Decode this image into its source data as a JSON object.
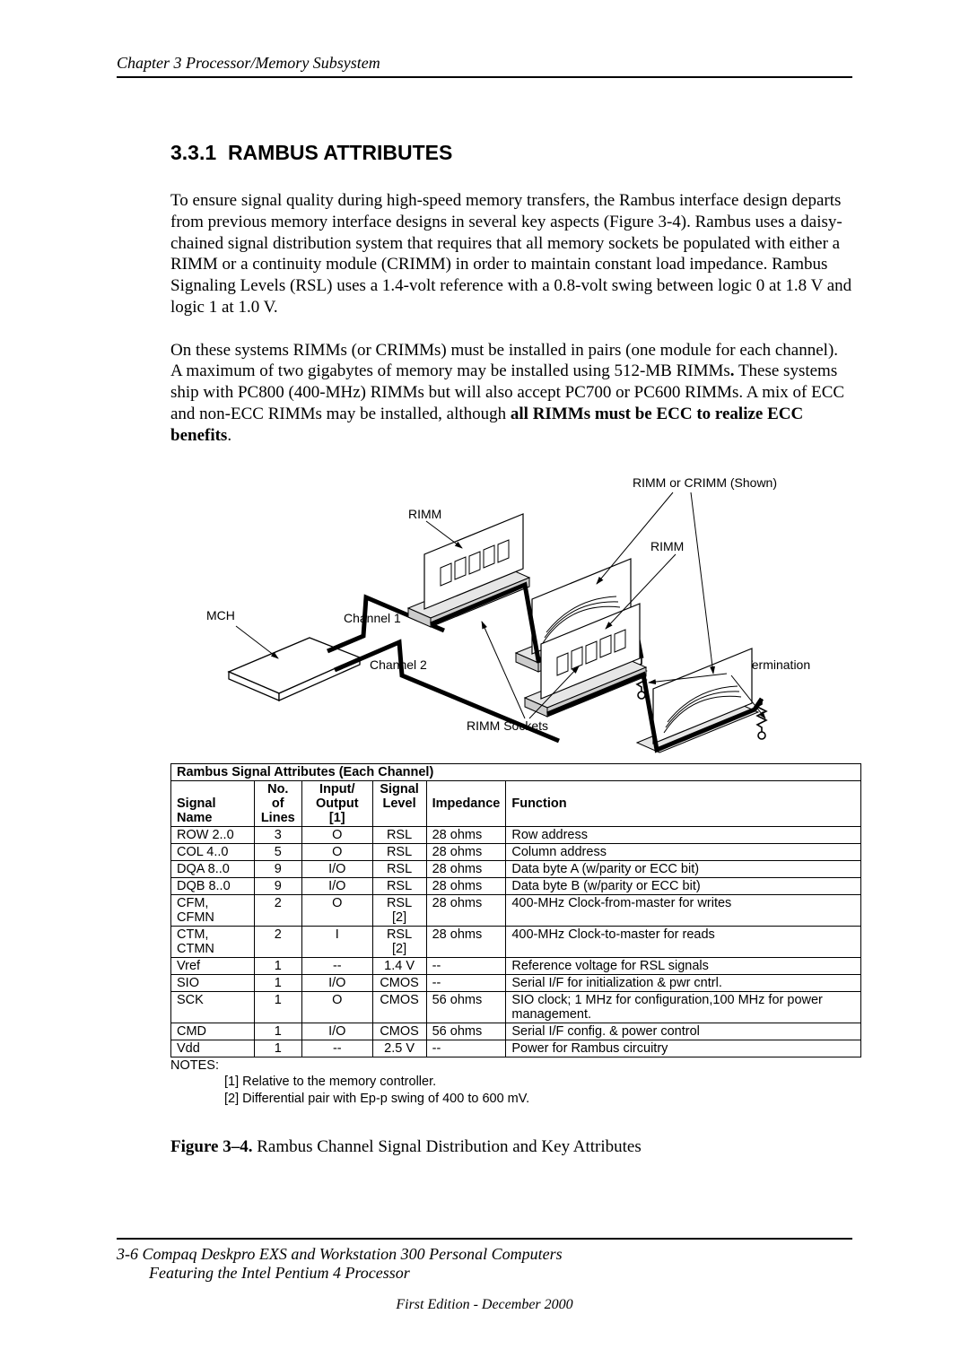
{
  "header": {
    "chapter_text": "Chapter 3  Processor/Memory Subsystem"
  },
  "section": {
    "number": "3.3.1",
    "title": "RAMBUS ATTRIBUTES"
  },
  "para1_a": "To ensure signal quality during high-speed memory transfers, the Rambus interface design departs from previous memory interface designs in several key aspects (Figure 3-4). Rambus uses a daisy-chained signal distribution system that requires that all memory sockets be populated with either a RIMM or a continuity module (CRIMM) in order to maintain constant load impedance. Rambus Signaling Levels (RSL) uses a 1.4-volt reference with a 0.8-volt swing between logic 0 at 1.8 V and logic 1 at 1.0 V.",
  "para2_a": "On these systems RIMMs (or CRIMMs) must be installed in pairs (one module for each channel). A maximum of two gigabytes of memory may be installed using 512-MB RIMMs",
  "para2_dot": ".",
  "para2_b": " These systems ship with PC800 (400-MHz) RIMMs but will also accept PC700 or PC600 RIMMs.  A mix of ECC and non-ECC RIMMs may be installed, although ",
  "para2_bold": "all RIMMs must be ECC to realize ECC benefits",
  "para2_end": ".",
  "diagram_labels": {
    "rimm_or_crimm": "RIMM or CRIMM (Shown)",
    "rimm1": "RIMM",
    "rimm2": "RIMM",
    "mch": "MCH",
    "ch1": "Channel 1",
    "ch2": "Channel 2",
    "sockets": "RIMM Sockets",
    "bus_term": "Bus Termination"
  },
  "table": {
    "title": "Rambus Signal Attributes (Each Channel)",
    "headers": {
      "c1": "Signal Name",
      "c2a": "No. of",
      "c2b": "Lines",
      "c3a": "Input/",
      "c3b": "Output [1]",
      "c4a": "Signal",
      "c4b": "Level",
      "c5": "Impedance",
      "c6": "Function"
    },
    "rows": [
      {
        "name": "ROW 2..0",
        "lines": "3",
        "io": "O",
        "level": "RSL",
        "imp": "28 ohms",
        "func": "Row address"
      },
      {
        "name": "COL 4..0",
        "lines": "5",
        "io": "O",
        "level": "RSL",
        "imp": "28 ohms",
        "func": "Column address"
      },
      {
        "name": "DQA 8..0",
        "lines": "9",
        "io": "I/O",
        "level": "RSL",
        "imp": "28 ohms",
        "func": "Data byte A (w/parity or ECC bit)"
      },
      {
        "name": "DQB 8..0",
        "lines": "9",
        "io": "I/O",
        "level": "RSL",
        "imp": "28 ohms",
        "func": "Data byte B (w/parity or ECC bit)"
      },
      {
        "name": "CFM, CFMN",
        "lines": "2",
        "io": "O",
        "level": "RSL [2]",
        "imp": "28 ohms",
        "func": "400-MHz Clock-from-master for writes"
      },
      {
        "name": "CTM, CTMN",
        "lines": "2",
        "io": "I",
        "level": "RSL [2]",
        "imp": "28 ohms",
        "func": "400-MHz Clock-to-master for reads"
      },
      {
        "name": "Vref",
        "lines": "1",
        "io": "--",
        "level": "1.4 V",
        "imp": "--",
        "func": "Reference voltage for RSL signals"
      },
      {
        "name": "SIO",
        "lines": "1",
        "io": "I/O",
        "level": "CMOS",
        "imp": "--",
        "func": "Serial I/F for initialization & pwr cntrl."
      },
      {
        "name": "SCK",
        "lines": "1",
        "io": "O",
        "level": "CMOS",
        "imp": "56 ohms",
        "func": "SIO clock; 1 MHz for configuration,100 MHz for power management."
      },
      {
        "name": "CMD",
        "lines": "1",
        "io": "I/O",
        "level": "CMOS",
        "imp": "56 ohms",
        "func": "Serial I/F config. & power control"
      },
      {
        "name": "Vdd",
        "lines": "1",
        "io": "--",
        "level": "2.5 V",
        "imp": "--",
        "func": "Power for Rambus circuitry"
      }
    ]
  },
  "notes": {
    "label": "NOTES:",
    "n1": "[1] Relative to the memory controller.",
    "n2": "[2] Differential pair with Ep-p swing of 400 to 600 mV."
  },
  "figure": {
    "label": "Figure 3–4.",
    "caption": "   Rambus Channel Signal Distribution and Key Attributes"
  },
  "footer": {
    "page": "3-6",
    "line1": "   Compaq Deskpro EXS and Workstation 300 Personal Computers",
    "line2": "Featuring the Intel Pentium 4 Processor",
    "edition": "First Edition  - December 2000"
  }
}
